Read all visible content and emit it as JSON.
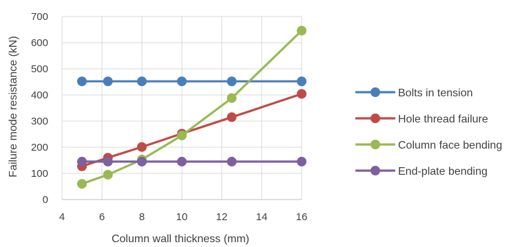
{
  "chart_data": {
    "type": "line",
    "xlabel": "Column wall thickness (mm)",
    "ylabel": "Failure mode resistance (kN)",
    "xlim": [
      4,
      16
    ],
    "ylim": [
      0,
      700
    ],
    "x_ticks": [
      "4",
      "6",
      "8",
      "10",
      "12",
      "14",
      "16"
    ],
    "y_ticks": [
      "0",
      "100",
      "200",
      "300",
      "400",
      "500",
      "600",
      "700"
    ],
    "grid": true,
    "legend": "right",
    "series": [
      {
        "name": "Bolts in tension",
        "color": "#4a7ebb",
        "x": [
          5,
          6.3,
          8,
          10,
          12.5,
          16
        ],
        "y": [
          452,
          452,
          452,
          452,
          452,
          452
        ]
      },
      {
        "name": "Hole thread failure",
        "color": "#be4b48",
        "x": [
          5,
          6.3,
          8,
          10,
          12.5,
          16
        ],
        "y": [
          127,
          160,
          201,
          252,
          315,
          404
        ]
      },
      {
        "name": "Column face bending",
        "color": "#98b954",
        "x": [
          5,
          6.3,
          8,
          10,
          12.5,
          16
        ],
        "y": [
          60,
          95,
          153,
          245,
          388,
          646
        ]
      },
      {
        "name": "End-plate bending",
        "color": "#7d60a0",
        "x": [
          5,
          6.3,
          8,
          10,
          12.5,
          16
        ],
        "y": [
          145,
          145,
          145,
          145,
          145,
          145
        ]
      }
    ]
  }
}
